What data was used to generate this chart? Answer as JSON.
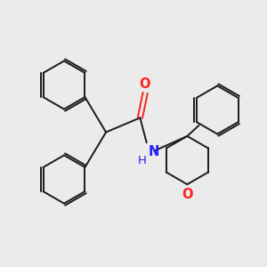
{
  "bg_color": "#ebebeb",
  "bond_color": "#1a1a1a",
  "bond_width": 1.4,
  "N_color": "#2020ff",
  "O_color": "#ff2020",
  "font_size": 10.5,
  "xlim": [
    0,
    10
  ],
  "ylim": [
    0,
    10
  ]
}
